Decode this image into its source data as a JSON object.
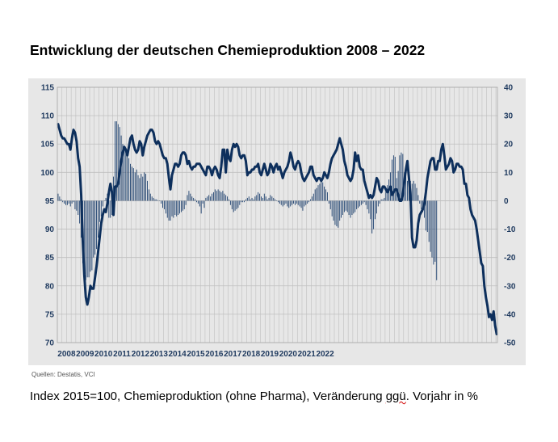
{
  "title": "Entwicklung der deutschen Chemieproduktion 2008 – 2022",
  "source": "Quellen: Destatis, VCI",
  "caption": {
    "before": "Index 2015=100, Chemieproduktion (ohne Pharma), Veränderung ",
    "marked": "ggü",
    "after": ". Vorjahr in %"
  },
  "colors": {
    "line": "#0d2f5c",
    "bars": "#1b3f6e",
    "panel": "#e7e7e7",
    "grid": "#bfbfbf",
    "axis_text": "#1f3a5f"
  },
  "chart_data": {
    "type": "bar+line",
    "x_start": "2008-01",
    "x_step": "month",
    "xticks": [
      "2008",
      "2009",
      "2010",
      "2011",
      "2012",
      "2013",
      "2014",
      "2015",
      "2016",
      "2017",
      "2018",
      "2019",
      "2020",
      "2021",
      "2022"
    ],
    "y_left": {
      "range": [
        70,
        115
      ],
      "ticks": [
        "115",
        "110",
        "105",
        "100",
        "95",
        "90",
        "85",
        "80",
        "75",
        "70"
      ]
    },
    "y_right": {
      "range": [
        -50,
        40
      ],
      "ticks": [
        "40",
        "30",
        "20",
        "10",
        "0",
        "-10",
        "-20",
        "-30",
        "-40",
        "-50"
      ]
    },
    "grid": true,
    "series": [
      {
        "type": "line",
        "axis": "left",
        "values": [
          108.5,
          107.5,
          106.5,
          106.0,
          106.0,
          105.5,
          105.0,
          105.0,
          104.0,
          106.0,
          107.5,
          107.0,
          105.5,
          102.5,
          101.0,
          96.0,
          88.0,
          82.0,
          78.0,
          76.7,
          78.0,
          80.0,
          79.5,
          79.5,
          81.5,
          83.5,
          86.0,
          88.5,
          91.0,
          92.5,
          93.5,
          93.0,
          94.5,
          96.5,
          98.0,
          96.5,
          92.5,
          97.5,
          97.5,
          98.0,
          100.0,
          102.0,
          103.5,
          104.5,
          104.0,
          103.0,
          104.5,
          106.0,
          106.5,
          105.0,
          104.0,
          103.5,
          104.0,
          105.5,
          105.0,
          103.0,
          104.5,
          105.5,
          106.5,
          107.0,
          107.5,
          107.5,
          107.0,
          105.5,
          105.0,
          105.5,
          105.0,
          104.0,
          103.0,
          102.5,
          102.5,
          101.5,
          99.0,
          97.0,
          99.5,
          100.5,
          101.5,
          101.5,
          101.0,
          101.5,
          103.0,
          103.5,
          103.5,
          103.0,
          101.5,
          102.0,
          101.0,
          100.5,
          101.0,
          101.0,
          101.5,
          101.5,
          101.5,
          101.0,
          100.5,
          100.0,
          99.5,
          101.0,
          101.0,
          100.5,
          99.5,
          100.5,
          101.0,
          100.5,
          99.5,
          99.0,
          101.0,
          104.0,
          104.0,
          100.0,
          104.0,
          102.5,
          102.0,
          104.0,
          105.0,
          104.5,
          105.0,
          104.5,
          103.0,
          102.5,
          103.0,
          103.0,
          102.0,
          99.5,
          100.0,
          100.0,
          100.5,
          100.5,
          101.0,
          101.0,
          101.5,
          100.0,
          99.5,
          100.5,
          101.5,
          100.5,
          99.5,
          100.0,
          101.5,
          101.0,
          100.0,
          101.0,
          101.5,
          100.5,
          101.0,
          100.0,
          99.0,
          100.0,
          100.5,
          101.0,
          102.0,
          103.5,
          102.5,
          101.0,
          100.5,
          101.5,
          102.0,
          101.5,
          100.0,
          99.0,
          98.5,
          99.0,
          99.5,
          100.0,
          101.0,
          101.0,
          99.5,
          99.0,
          98.5,
          99.0,
          99.0,
          98.5,
          99.0,
          100.0,
          99.5,
          99.0,
          100.0,
          101.5,
          102.5,
          103.0,
          103.5,
          104.0,
          105.0,
          106.0,
          105.0,
          104.0,
          102.0,
          101.0,
          99.5,
          99.0,
          98.5,
          99.0,
          100.5,
          103.5,
          102.0,
          103.0,
          101.0,
          100.5,
          100.5,
          98.5,
          97.5,
          96.5,
          95.5,
          96.0,
          95.5,
          96.0,
          97.5,
          99.0,
          98.5,
          97.0,
          96.5,
          97.5,
          97.5,
          97.0,
          96.5,
          97.0,
          97.5,
          96.0,
          96.5,
          97.0,
          97.0,
          96.0,
          95.0,
          95.0,
          96.0,
          98.5,
          100.5,
          102.0,
          99.0,
          96.0,
          88.5,
          86.8,
          86.8,
          88.0,
          91.0,
          92.5,
          93.0,
          93.5,
          94.5,
          96.5,
          99.0,
          100.5,
          102.0,
          102.5,
          102.5,
          100.5,
          100.5,
          102.0,
          102.0,
          104.0,
          105.0,
          103.0,
          100.5,
          101.0,
          101.5,
          102.5,
          102.0,
          100.0,
          100.5,
          101.5,
          101.5,
          101.0,
          101.0,
          100.5,
          98.0,
          98.0,
          96.0,
          95.5,
          93.5,
          92.5,
          92.0,
          91.5,
          90.0,
          88.0,
          86.0,
          84.0,
          83.5,
          80.0,
          78.0,
          76.5,
          74.5,
          75.0,
          74.0,
          75.5,
          73.0,
          71.5
        ]
      },
      {
        "type": "bar",
        "axis": "right",
        "values": [
          2.5,
          1.5,
          0.5,
          -0.5,
          -1.0,
          -1.5,
          -1.5,
          -1.0,
          -2.0,
          -1.0,
          -0.5,
          -3.0,
          -3.5,
          -5.0,
          -8.0,
          -13.0,
          -22.0,
          -26.0,
          -28.0,
          -27.0,
          -27.0,
          -25.0,
          -24.5,
          -20.0,
          -19.0,
          -17.0,
          -13.0,
          -7.5,
          -5.5,
          -2.0,
          0.0,
          1.0,
          2.5,
          -6.0,
          -6.0,
          -5.0,
          8.5,
          28.0,
          28.0,
          27.0,
          26.0,
          23.0,
          20.0,
          19.0,
          18.0,
          17.0,
          15.0,
          13.0,
          12.0,
          11.5,
          10.0,
          11.0,
          9.0,
          8.0,
          9.5,
          8.5,
          10.0,
          9.5,
          7.0,
          4.0,
          2.5,
          1.5,
          1.0,
          0.5,
          0.5,
          0.0,
          0.0,
          -1.0,
          -2.5,
          -3.0,
          -4.5,
          -6.0,
          -7.0,
          -7.0,
          -5.5,
          -6.0,
          -5.0,
          -5.5,
          -5.0,
          -4.5,
          -4.0,
          -3.5,
          -3.0,
          -1.5,
          2.0,
          3.5,
          2.5,
          1.5,
          1.0,
          0.5,
          -0.5,
          -1.0,
          -2.0,
          -4.5,
          -1.0,
          -2.5,
          1.0,
          1.5,
          2.0,
          1.5,
          2.5,
          3.0,
          4.0,
          3.5,
          4.0,
          3.5,
          3.0,
          3.5,
          2.5,
          2.0,
          1.5,
          0.5,
          -1.5,
          -3.0,
          -4.0,
          -3.5,
          -3.0,
          -2.5,
          -1.5,
          -0.5,
          -0.5,
          -0.5,
          0.5,
          1.0,
          1.5,
          0.5,
          1.0,
          0.5,
          1.5,
          2.0,
          3.0,
          2.5,
          1.5,
          1.0,
          2.5,
          1.5,
          0.5,
          1.0,
          2.0,
          1.5,
          1.0,
          0.5,
          0.0,
          -0.5,
          -1.0,
          -1.5,
          -2.0,
          -1.5,
          -1.0,
          -2.0,
          -2.5,
          -2.0,
          -1.5,
          -1.0,
          -1.5,
          -1.0,
          -1.5,
          -2.0,
          -2.5,
          -3.5,
          -2.0,
          -1.5,
          -1.0,
          -0.5,
          0.5,
          1.5,
          2.5,
          4.0,
          4.5,
          5.5,
          6.0,
          7.5,
          6.5,
          5.0,
          4.0,
          3.0,
          -1.0,
          -3.0,
          -5.5,
          -7.0,
          -8.5,
          -9.0,
          -9.5,
          -7.0,
          -6.0,
          -5.0,
          -4.0,
          -3.5,
          -4.0,
          -5.0,
          -6.0,
          -5.0,
          -4.5,
          -4.0,
          -3.0,
          -2.5,
          -2.0,
          -1.5,
          -1.0,
          -0.5,
          -1.5,
          -3.0,
          -4.5,
          -6.5,
          -11.5,
          -10.0,
          -6.5,
          -4.5,
          -2.0,
          -1.0,
          0.5,
          0.5,
          1.0,
          3.5,
          5.5,
          7.5,
          10.0,
          14.5,
          16.0,
          15.5,
          8.0,
          10.5,
          16.0,
          17.0,
          16.5,
          10.0,
          9.0,
          7.0,
          8.0,
          7.0,
          6.0,
          7.0,
          6.0,
          4.5,
          2.0,
          -1.0,
          -3.0,
          -4.0,
          -6.0,
          -10.5,
          -11.0,
          -14.5,
          -18.0,
          -20.0,
          -22.5,
          -21.5,
          -28.0
        ]
      }
    ]
  }
}
